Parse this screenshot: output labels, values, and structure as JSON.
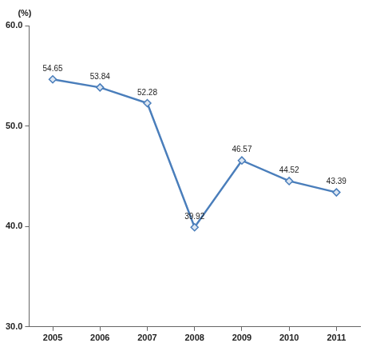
{
  "chart_data": {
    "type": "line",
    "ylabel": "(%)",
    "categories": [
      "2005",
      "2006",
      "2007",
      "2008",
      "2009",
      "2010",
      "2011"
    ],
    "values": [
      54.65,
      53.84,
      52.28,
      39.92,
      46.57,
      44.52,
      43.39
    ],
    "color": "#4a7ebb",
    "marker": "diamond",
    "line_style": "solid",
    "ylim": [
      30,
      60
    ],
    "yticks": [
      {
        "value": 30,
        "label": "30.0"
      },
      {
        "value": 40,
        "label": "40.0"
      },
      {
        "value": 50,
        "label": "50.0"
      },
      {
        "value": 60,
        "label": "60.0"
      }
    ],
    "grid": false,
    "data_labels": true
  }
}
